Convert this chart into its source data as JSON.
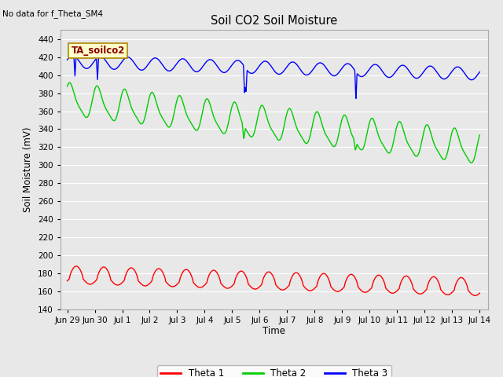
{
  "title": "Soil CO2 Soil Moisture",
  "no_data_text": "No data for f_Theta_SM4",
  "label_text": "TA_soilco2",
  "ylabel": "Soil Moisture (mV)",
  "xlabel": "Time",
  "ylim": [
    140,
    450
  ],
  "yticks": [
    140,
    160,
    180,
    200,
    220,
    240,
    260,
    280,
    300,
    320,
    340,
    360,
    380,
    400,
    420,
    440
  ],
  "xtick_labels": [
    "Jun 29",
    "Jun 30",
    "Jul 1",
    "Jul 2",
    "Jul 3",
    "Jul 4",
    "Jul 5",
    "Jul 6",
    "Jul 7",
    "Jul 8",
    "Jul 9",
    "Jul 10",
    "Jul 11",
    "Jul 12",
    "Jul 13",
    "Jul 14"
  ],
  "xtick_positions": [
    0,
    1,
    2,
    3,
    4,
    5,
    6,
    7,
    8,
    9,
    10,
    11,
    12,
    13,
    14,
    15
  ],
  "bg_color": "#e8e8e8",
  "plot_bg_color": "#e8e8e8",
  "grid_color": "#ffffff",
  "theta1_color": "#ff0000",
  "theta2_color": "#00cc00",
  "theta3_color": "#0000ff",
  "legend_entries": [
    "Theta 1",
    "Theta 2",
    "Theta 3"
  ],
  "figsize": [
    6.4,
    4.8
  ],
  "dpi": 100
}
